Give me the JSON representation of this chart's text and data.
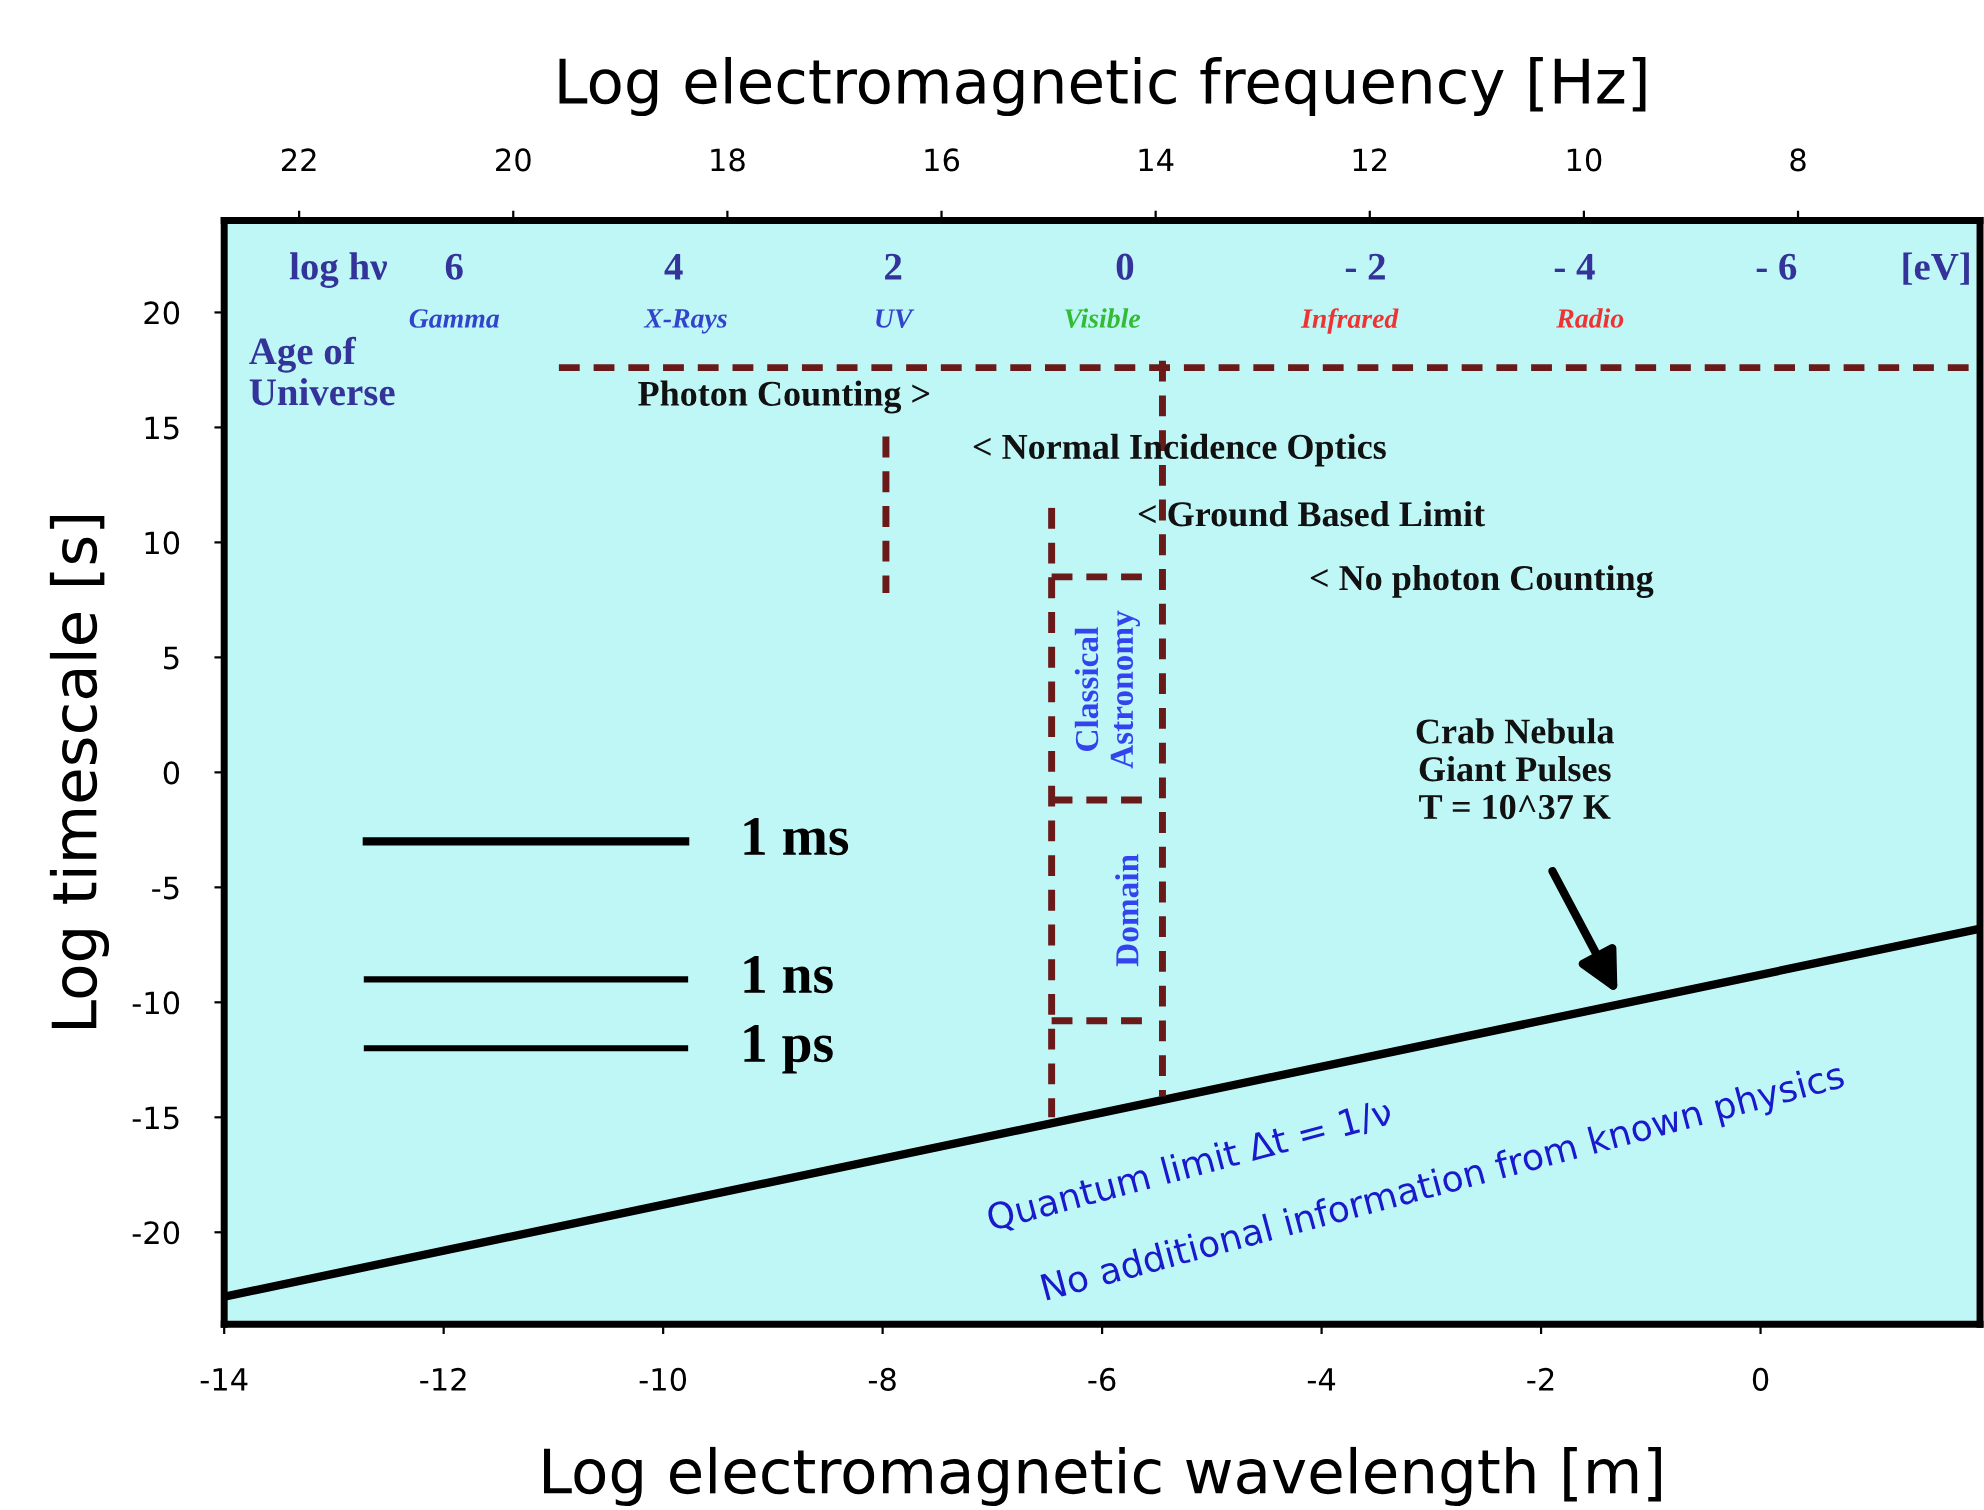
{
  "chart_data": {
    "type": "line",
    "xlabel": "Log electromagnetic wavelength [m]",
    "ylabel": "Log timescale [s]",
    "x2label": "Log electromagnetic frequency [Hz]",
    "xlim": [
      -14,
      2
    ],
    "xticks": [
      -14,
      -12,
      -10,
      -8,
      -6,
      -4,
      -2,
      0
    ],
    "ylim": [
      -24,
      24
    ],
    "yticks": [
      -20,
      -15,
      -10,
      -5,
      0,
      5,
      10,
      15,
      20
    ],
    "x2lim": [
      22.7,
      6.3
    ],
    "x2ticks": [
      22,
      20,
      18,
      16,
      14,
      12,
      10,
      8
    ],
    "grid": false,
    "legend": false,
    "marker": "none",
    "series": [
      {
        "color": "#000000",
        "line_style": "solid",
        "x": [
          -14,
          2
        ],
        "values": [
          -22.8,
          -6.8
        ]
      },
      {
        "name": "1 ms",
        "color": "#000000",
        "line_style": "solid",
        "x": [
          -12.7,
          -9.8
        ],
        "values": [
          -3,
          -3
        ]
      },
      {
        "name": "1 ns",
        "color": "#000000",
        "line_style": "solid",
        "x": [
          -12.7,
          -9.8
        ],
        "values": [
          -9,
          -9
        ]
      },
      {
        "name": "1 ps",
        "color": "#000000",
        "line_style": "solid",
        "x": [
          -12.7,
          -9.8
        ],
        "values": [
          -12,
          -12
        ]
      },
      {
        "color": "#6b1a1a",
        "line_style": "dashed",
        "x": [
          -10.95,
          2
        ],
        "values": [
          17.6,
          17.6
        ]
      },
      {
        "color": "#6b1a1a",
        "line_style": "dashed",
        "x": [
          -7.97,
          -7.97
        ],
        "values": [
          14.6,
          7.8
        ]
      },
      {
        "color": "#6b1a1a",
        "line_style": "dashed",
        "x": [
          -6.46,
          -6.46
        ],
        "values": [
          11.5,
          -15
        ]
      },
      {
        "color": "#6b1a1a",
        "line_style": "dashed",
        "x": [
          -5.45,
          -5.45
        ],
        "values": [
          17.9,
          -14.1
        ]
      },
      {
        "color": "#6b1a1a",
        "line_style": "dashed",
        "x": [
          -6.46,
          -5.6
        ],
        "values": [
          8.5,
          8.5
        ]
      },
      {
        "color": "#6b1a1a",
        "line_style": "dashed",
        "x": [
          -6.46,
          -5.6
        ],
        "values": [
          -1.2,
          -1.2
        ]
      },
      {
        "color": "#6b1a1a",
        "line_style": "dashed",
        "x": [
          -6.46,
          -5.6
        ],
        "values": [
          -10.8,
          -10.8
        ]
      }
    ],
    "annotations": [
      "log hν",
      "6",
      "4",
      "2",
      "0",
      "- 2",
      "- 4",
      "- 6",
      "[eV]",
      "Gamma",
      "X-Rays",
      "UV",
      "Visible",
      "Infrared",
      "Radio",
      "Age of\nUniverse",
      "Photon Counting >",
      "< Normal Incidence Optics",
      "< Ground Based Limit",
      "< No photon Counting",
      "Classical\nAstronomy",
      "Domain",
      "Crab Nebula\nGiant Pulses\nT = 10^37 K",
      "Quantum limit Δt = 1/ν",
      "No additional information from known physics"
    ]
  }
}
